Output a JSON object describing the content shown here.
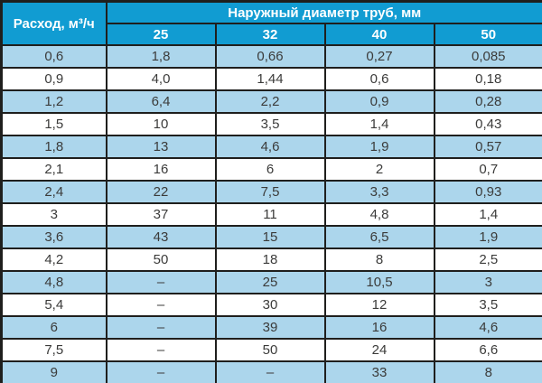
{
  "chart_data": {
    "type": "table",
    "row_header": "Расход, м³/ч",
    "column_group_header": "Наружный диаметр труб, мм",
    "columns": [
      "25",
      "32",
      "40",
      "50"
    ],
    "rows": [
      [
        "0,6",
        "1,8",
        "0,66",
        "0,27",
        "0,085"
      ],
      [
        "0,9",
        "4,0",
        "1,44",
        "0,6",
        "0,18"
      ],
      [
        "1,2",
        "6,4",
        "2,2",
        "0,9",
        "0,28"
      ],
      [
        "1,5",
        "10",
        "3,5",
        "1,4",
        "0,43"
      ],
      [
        "1,8",
        "13",
        "4,6",
        "1,9",
        "0,57"
      ],
      [
        "2,1",
        "16",
        "6",
        "2",
        "0,7"
      ],
      [
        "2,4",
        "22",
        "7,5",
        "3,3",
        "0,93"
      ],
      [
        "3",
        "37",
        "11",
        "4,8",
        "1,4"
      ],
      [
        "3,6",
        "43",
        "15",
        "6,5",
        "1,9"
      ],
      [
        "4,2",
        "50",
        "18",
        "8",
        "2,5"
      ],
      [
        "4,8",
        "–",
        "25",
        "10,5",
        "3"
      ],
      [
        "5,4",
        "–",
        "30",
        "12",
        "3,5"
      ],
      [
        "6",
        "–",
        "39",
        "16",
        "4,6"
      ],
      [
        "7,5",
        "–",
        "50",
        "24",
        "6,6"
      ],
      [
        "9",
        "–",
        "–",
        "33",
        "8"
      ]
    ]
  },
  "colors": {
    "header_bg": "#119CD2",
    "alt_row_bg": "#ACD6EC",
    "row_bg": "#FFFFFF",
    "border": "#1F1F1D",
    "header_text": "#FFFFFF",
    "cell_text": "#3B3B3A"
  }
}
